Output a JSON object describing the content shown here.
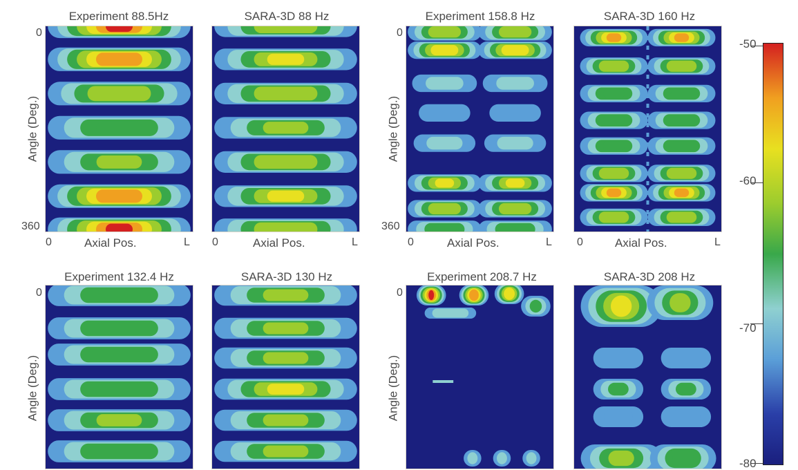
{
  "colors": {
    "background": "#1a1f7e",
    "colormap": [
      "#1a1f7e",
      "#2a3fa8",
      "#5b9fd8",
      "#8fd0d0",
      "#39a84a",
      "#9ccc2e",
      "#e8e020",
      "#f0a020",
      "#d42020"
    ]
  },
  "chart_data": [
    {
      "type": "heatmap",
      "title": "Experiment 88.5Hz",
      "xlabel": "Axial Pos.",
      "ylabel": "Angle (Deg.)",
      "x_ticks": [
        "0",
        "L"
      ],
      "y_ticks": [
        "0",
        "360"
      ],
      "colorscale": [
        -80,
        -50
      ],
      "bands": [
        {
          "angle": 0,
          "level": -51
        },
        {
          "angle": 58,
          "level": -52
        },
        {
          "angle": 118,
          "level": -61
        },
        {
          "angle": 178,
          "level": -64
        },
        {
          "angle": 238,
          "level": -62
        },
        {
          "angle": 298,
          "level": -52
        },
        {
          "angle": 356,
          "level": -51
        }
      ]
    },
    {
      "type": "heatmap",
      "title": "SARA-3D 88 Hz",
      "xlabel": "Axial Pos.",
      "x_ticks": [
        "0",
        "L"
      ],
      "colorscale": [
        -80,
        -50
      ],
      "bands": [
        {
          "angle": 0,
          "level": -60
        },
        {
          "angle": 58,
          "level": -58
        },
        {
          "angle": 118,
          "level": -61
        },
        {
          "angle": 178,
          "level": -62
        },
        {
          "angle": 238,
          "level": -60
        },
        {
          "angle": 298,
          "level": -58
        },
        {
          "angle": 356,
          "level": -61
        }
      ]
    },
    {
      "type": "heatmap",
      "title": "Experiment 158.8 Hz",
      "xlabel": "Axial Pos.",
      "ylabel": "Angle (Deg.)",
      "x_ticks": [
        "0",
        "L"
      ],
      "y_ticks": [
        "0",
        "360"
      ],
      "colorscale": [
        -80,
        -50
      ]
    },
    {
      "type": "heatmap",
      "title": "SARA-3D 160 Hz",
      "xlabel": "Axial Pos.",
      "x_ticks": [
        "0",
        "L"
      ],
      "colorscale": [
        -80,
        -50
      ]
    },
    {
      "type": "heatmap",
      "title": "Experiment 132.4 Hz",
      "ylabel": "Angle (Deg.)",
      "y_ticks": [
        "0"
      ],
      "colorscale": [
        -80,
        -50
      ]
    },
    {
      "type": "heatmap",
      "title": "SARA-3D 130 Hz",
      "colorscale": [
        -80,
        -50
      ]
    },
    {
      "type": "heatmap",
      "title": "Experiment 208.7 Hz",
      "ylabel": "Angle (Deg.)",
      "y_ticks": [
        "0"
      ],
      "colorscale": [
        -80,
        -50
      ]
    },
    {
      "type": "heatmap",
      "title": "SARA-3D 208 Hz",
      "colorscale": [
        -80,
        -50
      ]
    }
  ],
  "titles": {
    "p1": "Experiment 88.5Hz",
    "p2": "SARA-3D 88 Hz",
    "p3": "Experiment 158.8 Hz",
    "p4": "SARA-3D 160 Hz",
    "p5": "Experiment 132.4 Hz",
    "p6": "SARA-3D 130 Hz",
    "p7": "Experiment 208.7 Hz",
    "p8": "SARA-3D 208 Hz"
  },
  "axes": {
    "ylabel": "Angle (Deg.)",
    "xlabel": "Axial Pos.",
    "x_start": "0",
    "x_end": "L",
    "y_start": "0",
    "y_end": "360"
  },
  "colorbar": {
    "labels": [
      "-50",
      "-60",
      "-70",
      "-80"
    ]
  }
}
